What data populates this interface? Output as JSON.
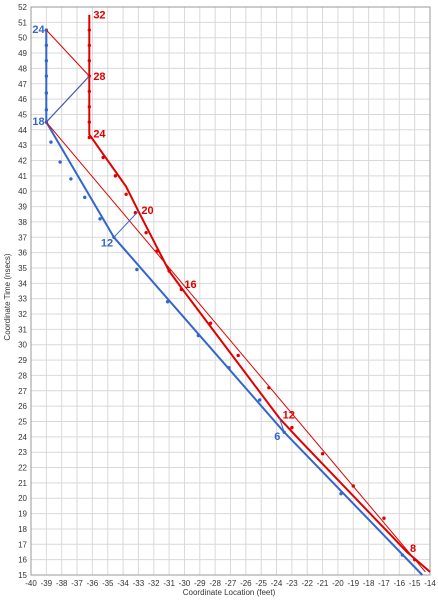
{
  "chart_data": {
    "type": "line",
    "xlabel": "Coordinate Location (feet)",
    "ylabel": "Coordinate Time (nsecs)",
    "xlim": [
      -40,
      -14
    ],
    "ylim": [
      15,
      52
    ],
    "x_ticks": [
      -40,
      -39,
      -38,
      -37,
      -36,
      -35,
      -34,
      -33,
      -32,
      -31,
      -30,
      -29,
      -28,
      -27,
      -26,
      -25,
      -24,
      -23,
      -22,
      -21,
      -20,
      -19,
      -18,
      -17,
      -16,
      -15,
      -14
    ],
    "y_ticks": [
      15,
      16,
      17,
      18,
      19,
      20,
      21,
      22,
      23,
      24,
      25,
      26,
      27,
      28,
      29,
      30,
      31,
      32,
      33,
      34,
      35,
      36,
      37,
      38,
      39,
      40,
      41,
      42,
      43,
      44,
      45,
      46,
      47,
      48,
      49,
      50,
      51,
      52
    ],
    "grid": true,
    "legend": "none",
    "colors": {
      "red": "#e00000",
      "blue": "#3366cc"
    },
    "series": [
      {
        "color": "#e00000",
        "width": 2,
        "points": [
          [
            -14,
            15.2
          ],
          [
            -15.5,
            16.5
          ],
          [
            -22.5,
            23.8
          ],
          [
            -23.8,
            25.2
          ],
          [
            -30.2,
            33.7
          ],
          [
            -31,
            34.8
          ],
          [
            -33,
            38.7
          ],
          [
            -33.8,
            40.3
          ],
          [
            -36.2,
            43.7
          ],
          [
            -36.2,
            51.5
          ]
        ],
        "markers": [
          [
            -15,
            16
          ],
          [
            -17,
            18.7
          ],
          [
            -19,
            20.8
          ],
          [
            -21,
            22.9
          ],
          [
            -23,
            24.6
          ],
          [
            -24.5,
            27.2
          ],
          [
            -26.5,
            29.3
          ],
          [
            -28.3,
            31.4
          ],
          [
            -30.2,
            33.6
          ],
          [
            -31,
            34.8
          ],
          [
            -31.8,
            36.1
          ],
          [
            -32.5,
            37.3
          ],
          [
            -33.2,
            38.6
          ],
          [
            -33.8,
            39.8
          ],
          [
            -34.5,
            41
          ],
          [
            -35.3,
            42.2
          ],
          [
            -36.2,
            43.5
          ],
          [
            -36.2,
            44.5
          ],
          [
            -36.2,
            45.5
          ],
          [
            -36.2,
            46.5
          ],
          [
            -36.2,
            47.5
          ],
          [
            -36.2,
            48.5
          ],
          [
            -36.2,
            49.5
          ],
          [
            -36.2,
            50.5
          ]
        ]
      },
      {
        "color": "#3366cc",
        "width": 2,
        "points": [
          [
            -14.5,
            15
          ],
          [
            -23.5,
            24.3
          ],
          [
            -34.6,
            37
          ],
          [
            -39,
            44.5
          ],
          [
            -39,
            50.5
          ]
        ],
        "markers": [
          [
            -15.8,
            16.3
          ],
          [
            -19.8,
            20.3
          ],
          [
            -23.5,
            24.3
          ],
          [
            -25.1,
            26.4
          ],
          [
            -27.1,
            28.5
          ],
          [
            -29.1,
            30.6
          ],
          [
            -31.1,
            32.8
          ],
          [
            -33.1,
            34.9
          ],
          [
            -34.6,
            37
          ],
          [
            -35.5,
            38.2
          ],
          [
            -36.5,
            39.6
          ],
          [
            -37.4,
            40.8
          ],
          [
            -38.1,
            41.9
          ],
          [
            -38.7,
            43.2
          ],
          [
            -39,
            44.5
          ],
          [
            -39,
            45.3
          ],
          [
            -39,
            46.4
          ],
          [
            -39,
            47.5
          ],
          [
            -39,
            48.5
          ],
          [
            -39,
            49.5
          ],
          [
            -39,
            50.5
          ]
        ]
      },
      {
        "color": "#e00000",
        "width": 1,
        "points": [
          [
            -14.3,
            15.2
          ],
          [
            -39,
            44.5
          ],
          [
            -36.2,
            47.5
          ],
          [
            -39,
            50.5
          ]
        ],
        "markers": []
      },
      {
        "color": "#3366cc",
        "width": 1,
        "points": [
          [
            -23.8,
            25.2
          ],
          [
            -23.5,
            24.3
          ]
        ],
        "markers": []
      },
      {
        "color": "#3366cc",
        "width": 1,
        "points": [
          [
            -33,
            38.7
          ],
          [
            -34.6,
            37
          ]
        ],
        "markers": []
      },
      {
        "color": "#3366cc",
        "width": 1,
        "points": [
          [
            -36.2,
            47.5
          ],
          [
            -39,
            44.5
          ]
        ],
        "markers": []
      }
    ],
    "annotations": [
      {
        "text": "32",
        "x": -36.2,
        "y": 51.5,
        "color": "#e00000",
        "dx": 4,
        "dy": 4
      },
      {
        "text": "28",
        "x": -36.2,
        "y": 47.5,
        "color": "#e00000",
        "dx": 4,
        "dy": 4
      },
      {
        "text": "24",
        "x": -36.2,
        "y": 43.5,
        "color": "#e00000",
        "dx": 4,
        "dy": 0
      },
      {
        "text": "20",
        "x": -33,
        "y": 38.7,
        "color": "#e00000",
        "dx": 3,
        "dy": 3
      },
      {
        "text": "16",
        "x": -30.2,
        "y": 33.7,
        "color": "#e00000",
        "dx": 3,
        "dy": 0
      },
      {
        "text": "12",
        "x": -23.8,
        "y": 25.2,
        "color": "#e00000",
        "dx": 3,
        "dy": 0
      },
      {
        "text": "8",
        "x": -15.5,
        "y": 16.5,
        "color": "#e00000",
        "dx": 3,
        "dy": 0
      },
      {
        "text": "24",
        "x": -39,
        "y": 50.5,
        "color": "#3366cc",
        "dx": -14,
        "dy": 3
      },
      {
        "text": "18",
        "x": -39,
        "y": 44.5,
        "color": "#3366cc",
        "dx": -14,
        "dy": 3
      },
      {
        "text": "12",
        "x": -34.6,
        "y": 37,
        "color": "#3366cc",
        "dx": -13,
        "dy": 9
      },
      {
        "text": "6",
        "x": -23.5,
        "y": 24.3,
        "color": "#3366cc",
        "dx": -10,
        "dy": 8
      }
    ]
  }
}
